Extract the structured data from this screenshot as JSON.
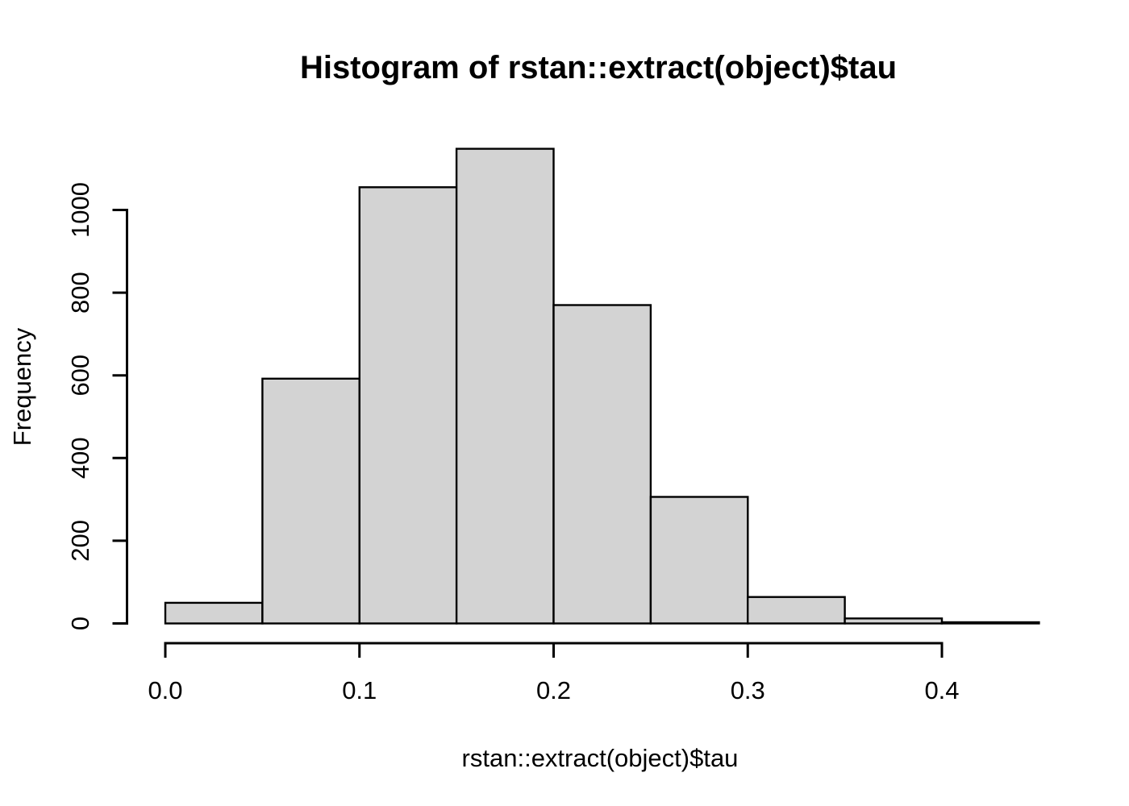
{
  "page": {
    "background_color": "#FFFFFF",
    "text_color": "#000000"
  },
  "chart_data": {
    "type": "bar",
    "chart_kind": "histogram",
    "title": "Histogram of rstan::extract(object)$tau",
    "xlabel": "rstan::extract(object)$tau",
    "ylabel": "Frequency",
    "bin_edges": [
      0.0,
      0.05,
      0.1,
      0.15,
      0.2,
      0.25,
      0.3,
      0.35,
      0.4,
      0.45
    ],
    "values": [
      50,
      592,
      1055,
      1148,
      770,
      306,
      64,
      12,
      3
    ],
    "x_ticks": [
      0.0,
      0.1,
      0.2,
      0.3,
      0.4
    ],
    "x_tick_labels": [
      "0.0",
      "0.1",
      "0.2",
      "0.3",
      "0.4"
    ],
    "y_ticks": [
      0,
      200,
      400,
      600,
      800,
      1000
    ],
    "y_tick_labels": [
      "0",
      "200",
      "400",
      "600",
      "800",
      "1000"
    ],
    "xlim": [
      0.0,
      0.45
    ],
    "ylim": [
      0,
      1150
    ],
    "grid": false,
    "legend": "none",
    "bar_fill_color": "#D3D3D3",
    "bar_border_color": "#000000",
    "axis_color": "#000000"
  }
}
